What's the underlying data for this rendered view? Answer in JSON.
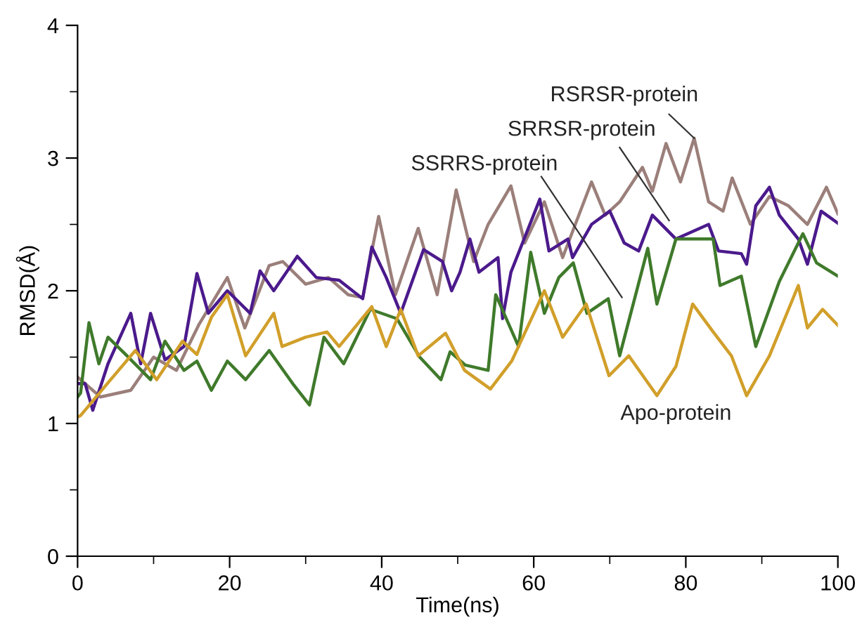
{
  "chart_data": {
    "type": "line",
    "xlabel": "Time(ns)",
    "ylabel": "RMSD(Å)",
    "xlim": [
      0,
      100
    ],
    "ylim": [
      0,
      4
    ],
    "xticks": [
      0,
      20,
      40,
      60,
      80,
      100
    ],
    "yticks": [
      0,
      1,
      2,
      3,
      4
    ],
    "grid": false,
    "legend": false,
    "marker": "none",
    "line_style": "solid",
    "series": [
      {
        "name": "RSRSR-protein",
        "color": "#9b7f7a",
        "x": [
          0,
          3,
          7,
          10,
          13,
          16,
          19.7,
          22,
          25.2,
          27,
          30,
          33,
          35.6,
          37.5,
          39.6,
          41.8,
          44.8,
          47.3,
          49.8,
          52.1,
          54,
          57,
          58.8,
          61.4,
          63.8,
          67.6,
          69.4,
          71.3,
          74.3,
          75.6,
          77.4,
          79.3,
          81.1,
          83,
          84.9,
          86.1,
          88.5,
          91,
          93.5,
          96,
          98.5,
          100
        ],
        "values": [
          1.35,
          1.2,
          1.25,
          1.5,
          1.4,
          1.75,
          2.1,
          1.72,
          2.19,
          2.22,
          2.05,
          2.1,
          1.97,
          1.95,
          2.56,
          1.97,
          2.47,
          1.97,
          2.76,
          2.22,
          2.5,
          2.79,
          2.36,
          2.67,
          2.25,
          2.82,
          2.57,
          2.67,
          2.93,
          2.75,
          3.11,
          2.82,
          3.15,
          2.67,
          2.6,
          2.85,
          2.5,
          2.71,
          2.64,
          2.5,
          2.78,
          2.58
        ]
      },
      {
        "name": "SRRSR-protein",
        "color": "#4b1a8c",
        "x": [
          0,
          1,
          2,
          4,
          7,
          8.3,
          9.6,
          11.5,
          14,
          15.7,
          17.2,
          19.7,
          22.7,
          24,
          25.8,
          28.9,
          31.4,
          34.4,
          37.5,
          38.7,
          40.6,
          42.5,
          45.5,
          48,
          49.2,
          50.3,
          51.6,
          52.8,
          55.3,
          55.9,
          57,
          60.8,
          62,
          64.5,
          65.1,
          67.6,
          70,
          71.9,
          73.8,
          75.6,
          78.7,
          83,
          84.3,
          87.3,
          88,
          89.2,
          91,
          92.3,
          94.8,
          96,
          97.8,
          100
        ],
        "values": [
          1.3,
          1.3,
          1.1,
          1.45,
          1.83,
          1.45,
          1.83,
          1.48,
          1.58,
          2.13,
          1.83,
          2.0,
          1.83,
          2.15,
          2.0,
          2.26,
          2.1,
          2.08,
          1.94,
          2.33,
          2.1,
          1.83,
          2.31,
          2.22,
          2.0,
          2.14,
          2.39,
          2.14,
          2.25,
          1.79,
          2.14,
          2.69,
          2.3,
          2.39,
          2.25,
          2.5,
          2.6,
          2.36,
          2.3,
          2.57,
          2.39,
          2.5,
          2.3,
          2.28,
          2.2,
          2.64,
          2.78,
          2.57,
          2.39,
          2.2,
          2.6,
          2.51
        ]
      },
      {
        "name": "SSRRS-protein",
        "color": "#3f7a2b",
        "x": [
          0,
          0.4,
          1.5,
          2.8,
          4,
          6.5,
          9.6,
          11.5,
          14,
          15.7,
          17.6,
          19.7,
          22.1,
          25.2,
          28.3,
          30.5,
          32.4,
          35,
          38.5,
          42,
          45,
          47.8,
          49,
          51,
          54,
          55,
          58,
          59.6,
          61.4,
          63.3,
          65.2,
          67,
          69.8,
          71.3,
          75,
          76.2,
          78.7,
          83.6,
          84.5,
          87.3,
          89.2,
          92.3,
          95.4,
          97.2,
          100
        ],
        "values": [
          1.2,
          1.23,
          1.76,
          1.45,
          1.65,
          1.51,
          1.33,
          1.62,
          1.4,
          1.47,
          1.25,
          1.47,
          1.33,
          1.55,
          1.3,
          1.14,
          1.65,
          1.45,
          1.86,
          1.79,
          1.5,
          1.33,
          1.54,
          1.44,
          1.4,
          1.97,
          1.58,
          2.29,
          1.83,
          2.1,
          2.21,
          1.83,
          1.94,
          1.51,
          2.32,
          1.9,
          2.39,
          2.39,
          2.04,
          2.11,
          1.58,
          2.07,
          2.43,
          2.21,
          2.11
        ]
      },
      {
        "name": "Apo-protein",
        "color": "#d19f2a",
        "x": [
          0,
          0.4,
          3.9,
          7.6,
          10.4,
          13.8,
          15.7,
          17.6,
          19.7,
          22.1,
          25.8,
          26.9,
          30,
          32.8,
          34.4,
          38.7,
          40.6,
          42.5,
          44.8,
          48.4,
          50.9,
          54.3,
          57.1,
          61.4,
          63.8,
          66.9,
          69.9,
          72.5,
          76.2,
          78.7,
          80.9,
          83.6,
          86,
          88,
          91,
          94.8,
          96,
          98,
          100
        ],
        "values": [
          1.05,
          1.06,
          1.3,
          1.55,
          1.33,
          1.62,
          1.52,
          1.8,
          1.97,
          1.51,
          1.83,
          1.58,
          1.65,
          1.69,
          1.58,
          1.88,
          1.58,
          1.86,
          1.51,
          1.68,
          1.4,
          1.26,
          1.47,
          2.0,
          1.65,
          1.9,
          1.36,
          1.51,
          1.21,
          1.43,
          1.9,
          1.69,
          1.51,
          1.21,
          1.51,
          2.04,
          1.72,
          1.86,
          1.74
        ]
      }
    ]
  }
}
